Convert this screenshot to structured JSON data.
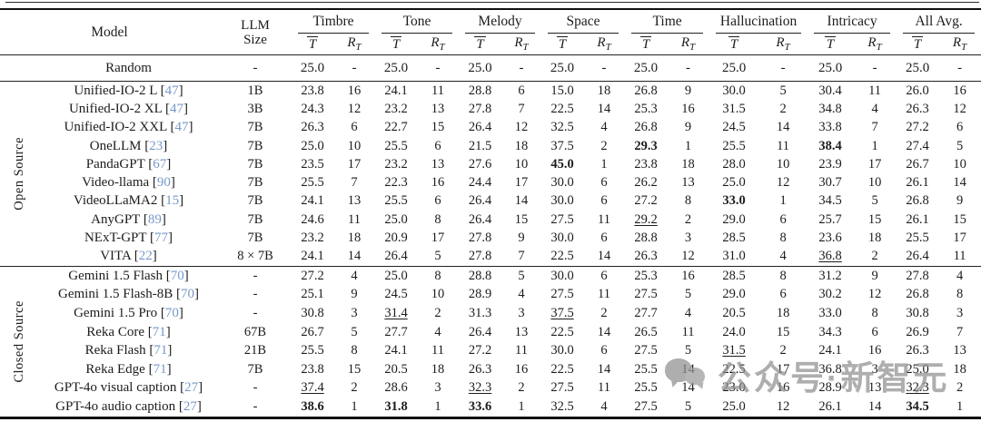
{
  "colors": {
    "citation_link": "#7698c8",
    "rule": "#111111",
    "text": "#1c1c1c",
    "watermark": "#8f8f8f"
  },
  "table": {
    "model_header": "Model",
    "size_header_lines": [
      "LLM",
      "Size"
    ],
    "groups": [
      "Timbre",
      "Tone",
      "Melody",
      "Space",
      "Time",
      "Hallucination",
      "Intricacy",
      "All Avg."
    ],
    "mean_symbol": "T",
    "rank_symbol": "R",
    "rank_subscript": "T",
    "random_row": {
      "model": "Random",
      "size": "-",
      "values": [
        "25.0",
        "-",
        "25.0",
        "-",
        "25.0",
        "-",
        "25.0",
        "-",
        "25.0",
        "-",
        "25.0",
        "-",
        "25.0",
        "-",
        "25.0",
        "-"
      ]
    },
    "sections": [
      {
        "label": "Open Source",
        "rows": [
          {
            "model": "Unified-IO-2 L",
            "cite": "47",
            "size": "1B",
            "values": [
              "23.8",
              "16",
              "24.1",
              "11",
              "28.8",
              "6",
              "15.0",
              "18",
              "26.8",
              "9",
              "30.0",
              "5",
              "30.4",
              "11",
              "26.0",
              "16"
            ],
            "bold": [],
            "underline": []
          },
          {
            "model": "Unified-IO-2 XL",
            "cite": "47",
            "size": "3B",
            "values": [
              "24.3",
              "12",
              "23.2",
              "13",
              "27.8",
              "7",
              "22.5",
              "14",
              "25.3",
              "16",
              "31.5",
              "2",
              "34.8",
              "4",
              "26.3",
              "12"
            ],
            "bold": [],
            "underline": []
          },
          {
            "model": "Unified-IO-2 XXL",
            "cite": "47",
            "size": "7B",
            "values": [
              "26.3",
              "6",
              "22.7",
              "15",
              "26.4",
              "12",
              "32.5",
              "4",
              "26.8",
              "9",
              "24.5",
              "14",
              "33.8",
              "7",
              "27.2",
              "6"
            ],
            "bold": [],
            "underline": []
          },
          {
            "model": "OneLLM",
            "cite": "23",
            "size": "7B",
            "values": [
              "25.0",
              "10",
              "25.5",
              "6",
              "21.5",
              "18",
              "37.5",
              "2",
              "29.3",
              "1",
              "25.5",
              "11",
              "38.4",
              "1",
              "27.4",
              "5"
            ],
            "bold": [
              8,
              12
            ],
            "underline": []
          },
          {
            "model": "PandaGPT",
            "cite": "67",
            "size": "7B",
            "values": [
              "23.5",
              "17",
              "23.2",
              "13",
              "27.6",
              "10",
              "45.0",
              "1",
              "23.8",
              "18",
              "28.0",
              "10",
              "23.9",
              "17",
              "26.7",
              "10"
            ],
            "bold": [
              6
            ],
            "underline": []
          },
          {
            "model": "Video-llama",
            "cite": "90",
            "size": "7B",
            "values": [
              "25.5",
              "7",
              "22.3",
              "16",
              "24.4",
              "17",
              "30.0",
              "6",
              "26.2",
              "13",
              "25.0",
              "12",
              "30.7",
              "10",
              "26.1",
              "14"
            ],
            "bold": [],
            "underline": []
          },
          {
            "model": "VideoLLaMA2",
            "cite": "15",
            "size": "7B",
            "values": [
              "24.1",
              "13",
              "25.5",
              "6",
              "26.4",
              "14",
              "30.0",
              "6",
              "27.2",
              "8",
              "33.0",
              "1",
              "34.5",
              "5",
              "26.8",
              "9"
            ],
            "bold": [
              10
            ],
            "underline": []
          },
          {
            "model": "AnyGPT",
            "cite": "89",
            "size": "7B",
            "values": [
              "24.6",
              "11",
              "25.0",
              "8",
              "26.4",
              "15",
              "27.5",
              "11",
              "29.2",
              "2",
              "29.0",
              "6",
              "25.7",
              "15",
              "26.1",
              "15"
            ],
            "bold": [],
            "underline": [
              8
            ]
          },
          {
            "model": "NExT-GPT",
            "cite": "77",
            "size": "7B",
            "values": [
              "23.2",
              "18",
              "20.9",
              "17",
              "27.8",
              "9",
              "30.0",
              "6",
              "28.8",
              "3",
              "28.5",
              "8",
              "23.6",
              "18",
              "25.5",
              "17"
            ],
            "bold": [],
            "underline": []
          },
          {
            "model": "VITA",
            "cite": "22",
            "size": "8 × 7B",
            "values": [
              "24.1",
              "14",
              "26.4",
              "5",
              "27.8",
              "7",
              "22.5",
              "14",
              "26.3",
              "12",
              "31.0",
              "4",
              "36.8",
              "2",
              "26.4",
              "11"
            ],
            "bold": [],
            "underline": [
              12
            ]
          }
        ]
      },
      {
        "label": "Closed Source",
        "rows": [
          {
            "model": "Gemini 1.5 Flash",
            "cite": "70",
            "size": "-",
            "values": [
              "27.2",
              "4",
              "25.0",
              "8",
              "28.8",
              "5",
              "30.0",
              "6",
              "25.3",
              "16",
              "28.5",
              "8",
              "31.2",
              "9",
              "27.8",
              "4"
            ],
            "bold": [],
            "underline": []
          },
          {
            "model": "Gemini 1.5 Flash-8B",
            "cite": "70",
            "size": "-",
            "values": [
              "25.1",
              "9",
              "24.5",
              "10",
              "28.9",
              "4",
              "27.5",
              "11",
              "27.5",
              "5",
              "29.0",
              "6",
              "30.2",
              "12",
              "26.8",
              "8"
            ],
            "bold": [],
            "underline": []
          },
          {
            "model": "Gemini 1.5 Pro",
            "cite": "70",
            "size": "-",
            "values": [
              "30.8",
              "3",
              "31.4",
              "2",
              "31.3",
              "3",
              "37.5",
              "2",
              "27.7",
              "4",
              "20.5",
              "18",
              "33.0",
              "8",
              "30.8",
              "3"
            ],
            "bold": [],
            "underline": [
              2,
              6
            ]
          },
          {
            "model": "Reka Core",
            "cite": "71",
            "size": "67B",
            "values": [
              "26.7",
              "5",
              "27.7",
              "4",
              "26.4",
              "13",
              "22.5",
              "14",
              "26.5",
              "11",
              "24.0",
              "15",
              "34.3",
              "6",
              "26.9",
              "7"
            ],
            "bold": [],
            "underline": []
          },
          {
            "model": "Reka Flash",
            "cite": "71",
            "size": "21B",
            "values": [
              "25.5",
              "8",
              "24.1",
              "11",
              "27.2",
              "11",
              "30.0",
              "6",
              "27.5",
              "5",
              "31.5",
              "2",
              "24.1",
              "16",
              "26.3",
              "13"
            ],
            "bold": [],
            "underline": [
              10
            ]
          },
          {
            "model": "Reka Edge",
            "cite": "71",
            "size": "7B",
            "values": [
              "23.8",
              "15",
              "20.5",
              "18",
              "26.3",
              "16",
              "22.5",
              "14",
              "25.5",
              "14",
              "22.5",
              "17",
              "36.8",
              "3",
              "25.0",
              "18"
            ],
            "bold": [],
            "underline": []
          },
          {
            "model": "GPT-4o visual caption",
            "cite": "27",
            "size": "-",
            "values": [
              "37.4",
              "2",
              "28.6",
              "3",
              "32.3",
              "2",
              "27.5",
              "11",
              "25.5",
              "14",
              "23.0",
              "16",
              "28.9",
              "13",
              "32.3",
              "2"
            ],
            "bold": [],
            "underline": [
              0,
              4,
              14
            ]
          },
          {
            "model": "GPT-4o audio caption",
            "cite": "27",
            "size": "-",
            "values": [
              "38.6",
              "1",
              "31.8",
              "1",
              "33.6",
              "1",
              "32.5",
              "4",
              "27.5",
              "5",
              "25.0",
              "12",
              "26.1",
              "14",
              "34.5",
              "1"
            ],
            "bold": [
              0,
              2,
              4,
              14
            ],
            "underline": []
          }
        ]
      }
    ]
  },
  "watermark": {
    "icon": "wechat-bubbles-icon",
    "text": "公众号·新智元"
  }
}
